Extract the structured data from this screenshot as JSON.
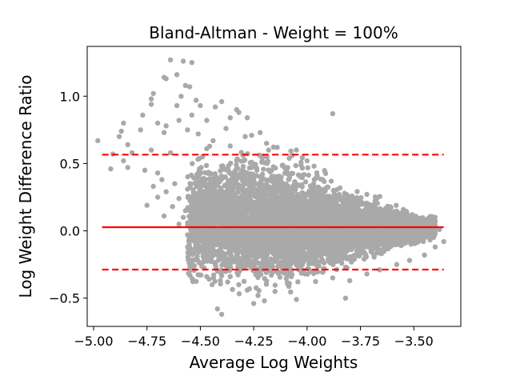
{
  "chart_data": {
    "type": "scatter",
    "title": "Bland-Altman - Weight = 100%",
    "xlabel": "Average Log Weights",
    "ylabel": "Log Weight Difference Ratio",
    "xlim": [
      -5.03,
      -3.28
    ],
    "ylim": [
      -0.71,
      1.37
    ],
    "x_ticks": [
      -5.0,
      -4.75,
      -4.5,
      -4.25,
      -4.0,
      -3.75,
      -3.5
    ],
    "x_tick_labels": [
      "−5.00",
      "−4.75",
      "−4.50",
      "−4.25",
      "−4.00",
      "−3.75",
      "−3.50"
    ],
    "y_ticks": [
      -0.5,
      0.0,
      0.5,
      1.0
    ],
    "y_tick_labels": [
      "−0.5",
      "0.0",
      "0.5",
      "1.0"
    ],
    "grid": false,
    "legend": "none",
    "colors": {
      "points": "#a9a9a9",
      "lines": "#ff0000",
      "axes": "#000000"
    },
    "reference_lines": [
      {
        "role": "mean",
        "y": 0.027,
        "style": "solid"
      },
      {
        "role": "upper_limit",
        "y": 0.566,
        "style": "dashed"
      },
      {
        "role": "lower_limit",
        "y": -0.288,
        "style": "dashed"
      }
    ],
    "reference_line_x_range": [
      -4.96,
      -3.36
    ],
    "points": [
      [
        -4.64,
        1.27
      ],
      [
        -4.58,
        1.26
      ],
      [
        -4.54,
        1.25
      ],
      [
        -4.61,
        1.16
      ],
      [
        -4.66,
        1.13
      ],
      [
        -4.67,
        1.14
      ],
      [
        -4.57,
        1.08
      ],
      [
        -4.55,
        1.07
      ],
      [
        -4.72,
        1.02
      ],
      [
        -4.73,
        0.98
      ],
      [
        -4.59,
        1.0
      ],
      [
        -4.52,
        0.97
      ],
      [
        -4.5,
        0.93
      ],
      [
        -4.4,
        0.96
      ],
      [
        -4.43,
        0.92
      ],
      [
        -4.61,
        0.93
      ],
      [
        -4.73,
        0.94
      ],
      [
        -4.77,
        0.86
      ],
      [
        -4.54,
        0.86
      ],
      [
        -4.33,
        0.9
      ],
      [
        -4.32,
        0.88
      ],
      [
        -4.28,
        0.84
      ],
      [
        -4.36,
        0.84
      ],
      [
        -4.47,
        0.82
      ],
      [
        -4.6,
        0.82
      ],
      [
        -4.66,
        0.78
      ],
      [
        -4.7,
        0.8
      ],
      [
        -4.78,
        0.75
      ],
      [
        -4.38,
        0.76
      ],
      [
        -4.56,
        0.75
      ],
      [
        -4.51,
        0.72
      ],
      [
        -4.67,
        0.73
      ],
      [
        -4.87,
        0.74
      ],
      [
        -4.86,
        0.8
      ],
      [
        -4.88,
        0.7
      ],
      [
        -4.98,
        0.67
      ],
      [
        -4.84,
        0.64
      ],
      [
        -4.73,
        0.6
      ],
      [
        -4.82,
        0.58
      ],
      [
        -4.64,
        0.58
      ],
      [
        -4.91,
        0.57
      ],
      [
        -4.47,
        0.61
      ],
      [
        -4.29,
        0.7
      ],
      [
        -4.22,
        0.73
      ],
      [
        -4.26,
        0.71
      ],
      [
        -4.19,
        0.65
      ],
      [
        -4.14,
        0.62
      ],
      [
        -4.18,
        0.6
      ],
      [
        -4.05,
        0.6
      ],
      [
        -3.88,
        0.87
      ],
      [
        -4.07,
        0.56
      ],
      [
        -4.0,
        0.52
      ],
      [
        -4.86,
        0.52
      ],
      [
        -4.84,
        0.47
      ],
      [
        -4.92,
        0.46
      ],
      [
        -4.76,
        0.45
      ],
      [
        -4.7,
        0.43
      ],
      [
        -4.68,
        0.38
      ],
      [
        -4.62,
        0.35
      ],
      [
        -4.72,
        0.33
      ],
      [
        -4.66,
        0.29
      ],
      [
        -4.56,
        0.31
      ],
      [
        -4.6,
        0.24
      ],
      [
        -4.7,
        0.25
      ],
      [
        -4.75,
        0.19
      ],
      [
        -4.63,
        0.18
      ],
      [
        -4.57,
        0.15
      ],
      [
        -4.67,
        0.11
      ],
      [
        -4.6,
        0.05
      ],
      [
        -4.58,
        0.1
      ],
      [
        -4.5,
        0.13
      ],
      [
        -4.54,
        0.01
      ],
      [
        -4.52,
        -0.06
      ],
      [
        -4.48,
        -0.09
      ],
      [
        -4.47,
        -0.12
      ],
      [
        -4.4,
        -0.16
      ],
      [
        -4.45,
        -0.2
      ],
      [
        -4.38,
        -0.26
      ],
      [
        -4.36,
        -0.34
      ],
      [
        -4.42,
        -0.3
      ],
      [
        -4.47,
        -0.34
      ],
      [
        -4.32,
        -0.4
      ],
      [
        -4.27,
        -0.43
      ],
      [
        -4.23,
        -0.48
      ],
      [
        -4.2,
        -0.52
      ],
      [
        -4.25,
        -0.54
      ],
      [
        -4.42,
        -0.58
      ],
      [
        -4.4,
        -0.62
      ],
      [
        -4.15,
        -0.45
      ],
      [
        -4.05,
        -0.51
      ],
      [
        -4.09,
        -0.4
      ],
      [
        -3.88,
        -0.35
      ],
      [
        -3.82,
        -0.5
      ],
      [
        -3.8,
        -0.37
      ],
      [
        -3.72,
        -0.32
      ],
      [
        -3.66,
        -0.29
      ],
      [
        -3.58,
        -0.25
      ],
      [
        -3.52,
        -0.22
      ],
      [
        -3.45,
        -0.18
      ],
      [
        -3.4,
        -0.12
      ],
      [
        -3.36,
        -0.08
      ],
      [
        -3.38,
        0.01
      ],
      [
        -3.42,
        0.05
      ],
      [
        -3.48,
        0.09
      ],
      [
        -3.55,
        0.12
      ],
      [
        -3.62,
        0.15
      ],
      [
        -3.7,
        0.19
      ],
      [
        -3.77,
        0.22
      ],
      [
        -3.85,
        0.27
      ],
      [
        -3.92,
        0.31
      ],
      [
        -3.97,
        0.35
      ],
      [
        -4.03,
        0.41
      ],
      [
        -4.1,
        0.47
      ],
      [
        -4.21,
        0.52
      ],
      [
        -4.3,
        0.56
      ],
      [
        -4.36,
        0.63
      ],
      [
        -4.44,
        0.67
      ],
      [
        -4.49,
        0.55
      ],
      [
        -4.33,
        0.46
      ],
      [
        -4.22,
        0.4
      ]
    ],
    "dense_region": {
      "x": [
        -4.56,
        -3.4
      ],
      "center_at_x": [
        [
          -4.5,
          0.07
        ],
        [
          -4.25,
          0.08
        ],
        [
          -4.0,
          0.05
        ],
        [
          -3.75,
          0.02
        ],
        [
          -3.45,
          0.02
        ]
      ],
      "half_spread_at_x": [
        [
          -4.5,
          0.3
        ],
        [
          -4.25,
          0.32
        ],
        [
          -4.0,
          0.27
        ],
        [
          -3.75,
          0.15
        ],
        [
          -3.45,
          0.06
        ]
      ],
      "approx_count": 6500
    }
  }
}
